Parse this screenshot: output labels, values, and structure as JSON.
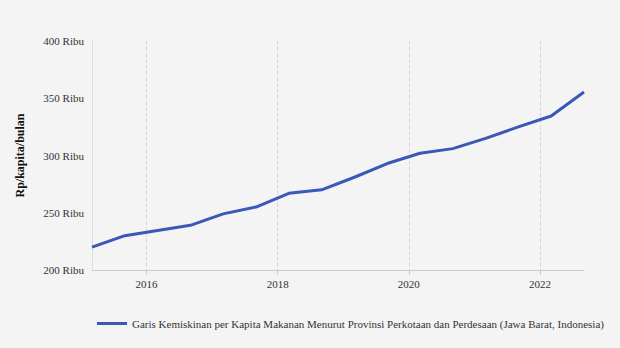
{
  "chart_data": {
    "type": "line",
    "y_label": "Rp/kapita/bulan",
    "x": [
      2015.17,
      2015.67,
      2016.17,
      2016.67,
      2017.17,
      2017.67,
      2018.17,
      2018.67,
      2019.17,
      2019.67,
      2020.17,
      2020.67,
      2021.17,
      2021.67,
      2022.17,
      2022.67
    ],
    "series": [
      {
        "name": "Garis Kemiskinan per Kapita Makanan Menurut Provinsi Perkotaan dan Perdesaan (Jawa Barat, Indonesia)",
        "color": "#3a58b8",
        "values": [
          220,
          230,
          234.5,
          239,
          249,
          255,
          267,
          270,
          281,
          293,
          302,
          306,
          315,
          325,
          334.5,
          355.5
        ]
      }
    ],
    "xlim": [
      2015.17,
      2022.67
    ],
    "xticks": [
      2016,
      2018,
      2020,
      2022
    ],
    "ylim": [
      200,
      400
    ],
    "yticks": [
      {
        "value": 200,
        "label": "200 Ribu"
      },
      {
        "value": 250,
        "label": "250 Ribu"
      },
      {
        "value": 300,
        "label": "300 Ribu"
      },
      {
        "value": 350,
        "label": "350 Ribu"
      },
      {
        "value": 400,
        "label": "400 Ribu"
      }
    ],
    "grid": true,
    "legend": "bottom"
  }
}
